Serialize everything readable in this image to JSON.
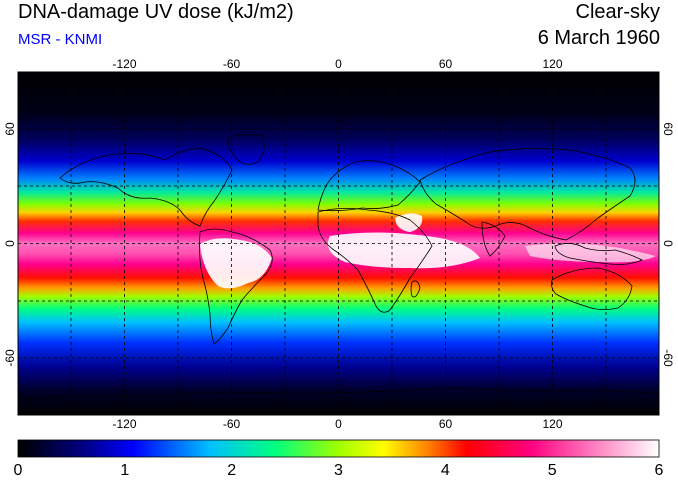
{
  "header": {
    "title": "DNA-damage UV dose (kJ/m2)",
    "subtitle": "MSR - KNMI",
    "condition": "Clear-sky",
    "date": "6 March 1960"
  },
  "map": {
    "projection": "equirectangular",
    "lon_range": [
      -180,
      180
    ],
    "lat_range": [
      -90,
      90
    ],
    "lon_ticks": [
      "-120",
      "-60",
      "0",
      "60",
      "120"
    ],
    "lat_ticks": [
      "60",
      "0",
      "-60"
    ],
    "grid_spacing_deg": 30,
    "grid": true
  },
  "colorbar": {
    "range": [
      0,
      6
    ],
    "tick_labels": [
      "0",
      "1",
      "2",
      "3",
      "4",
      "5",
      "6"
    ],
    "colors": [
      "#000000",
      "#000080",
      "#0000ff",
      "#00c0ff",
      "#00ff80",
      "#ffff00",
      "#ff8000",
      "#ff0000",
      "#ff0080",
      "#ff80c0",
      "#ffffff"
    ]
  }
}
